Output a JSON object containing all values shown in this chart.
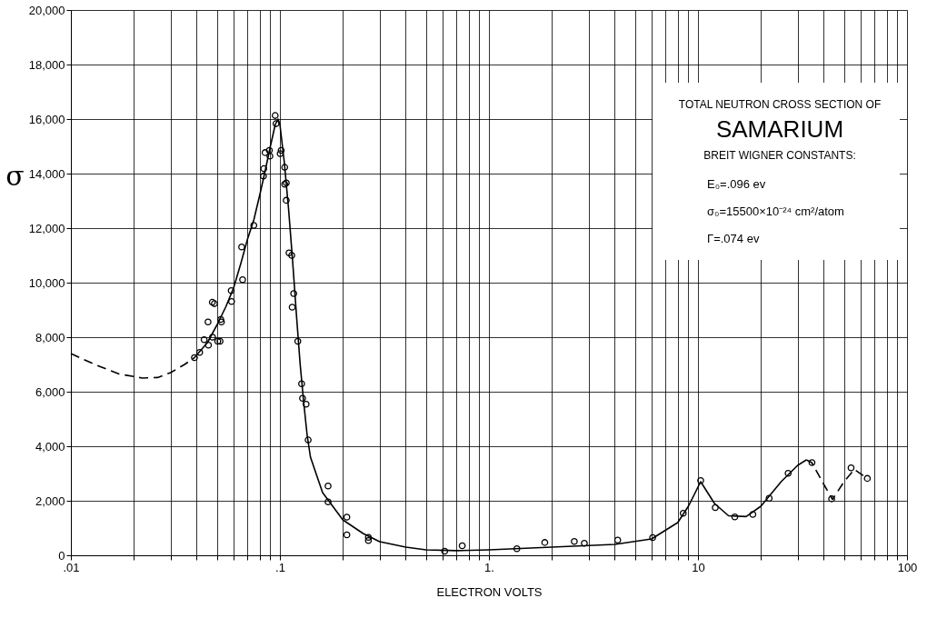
{
  "chart_data": {
    "type": "scatter",
    "xlabel": "ELECTRON VOLTS",
    "ylabel": "σ",
    "log": "x",
    "grid": true,
    "xlim": [
      0.01,
      100
    ],
    "ylim": [
      0,
      20000
    ],
    "xticks": [
      {
        "value": 0.01,
        "label": ".01"
      },
      {
        "value": 0.02,
        "label": null
      },
      {
        "value": 0.03,
        "label": null
      },
      {
        "value": 0.04,
        "label": null
      },
      {
        "value": 0.05,
        "label": null
      },
      {
        "value": 0.06,
        "label": null
      },
      {
        "value": 0.07,
        "label": null
      },
      {
        "value": 0.08,
        "label": null
      },
      {
        "value": 0.09,
        "label": null
      },
      {
        "value": 0.1,
        "label": ".1"
      },
      {
        "value": 0.2,
        "label": null
      },
      {
        "value": 0.3,
        "label": null
      },
      {
        "value": 0.4,
        "label": null
      },
      {
        "value": 0.5,
        "label": null
      },
      {
        "value": 0.6,
        "label": null
      },
      {
        "value": 0.7,
        "label": null
      },
      {
        "value": 0.8,
        "label": null
      },
      {
        "value": 0.9,
        "label": null
      },
      {
        "value": 1,
        "label": "1."
      },
      {
        "value": 2,
        "label": null
      },
      {
        "value": 3,
        "label": null
      },
      {
        "value": 4,
        "label": null
      },
      {
        "value": 5,
        "label": null
      },
      {
        "value": 6,
        "label": null
      },
      {
        "value": 7,
        "label": null
      },
      {
        "value": 8,
        "label": null
      },
      {
        "value": 9,
        "label": null
      },
      10,
      {
        "value": 20,
        "label": null
      },
      {
        "value": 30,
        "label": null
      },
      {
        "value": 40,
        "label": null
      },
      {
        "value": 50,
        "label": null
      },
      {
        "value": 60,
        "label": null
      },
      {
        "value": 70,
        "label": null
      },
      {
        "value": 80,
        "label": null
      },
      {
        "value": 90,
        "label": null
      },
      100
    ],
    "yticks": [
      0,
      {
        "value": 2000,
        "label": "2,000"
      },
      {
        "value": 4000,
        "label": "4,000"
      },
      {
        "value": 6000,
        "label": "6,000"
      },
      {
        "value": 8000,
        "label": "8,000"
      },
      {
        "value": 10000,
        "label": "10,000"
      },
      {
        "value": 12000,
        "label": "12,000"
      },
      {
        "value": 14000,
        "label": "14,000"
      },
      {
        "value": 16000,
        "label": "16,000"
      },
      {
        "value": 18000,
        "label": "18,000"
      },
      {
        "value": 20000,
        "label": "20,000"
      }
    ],
    "annotations": [
      "TOTAL NEUTRON CROSS SECTION OF",
      "SAMARIUM",
      "BREIT WIGNER CONSTANTS:",
      "E₀=.096 ev",
      "σ₀=15500×10⁻²⁴ cm²/atom",
      "Γ=.074 ev"
    ],
    "series": [
      {
        "color": "#000000",
        "marker": "circle",
        "x": [
          0.039,
          0.0413,
          0.0434,
          0.0453,
          0.0455,
          0.0475,
          0.0476,
          0.0486,
          0.0504,
          0.0517,
          0.0521,
          0.0525,
          0.0585,
          0.0587,
          0.0656,
          0.0663,
          0.075,
          0.0834,
          0.0837,
          0.0849,
          0.089,
          0.0895,
          0.0949,
          0.0958,
          0.1003,
          0.1014,
          0.1054,
          0.1054,
          0.1073,
          0.1072,
          0.1106,
          0.1139,
          0.1145,
          0.1164,
          0.1218,
          0.127,
          0.1283,
          0.1334,
          0.1365,
          0.17,
          0.17,
          0.209,
          0.209,
          0.265,
          0.265,
          0.614,
          0.745,
          1.36,
          1.85,
          2.56,
          2.86,
          4.13,
          6.07,
          8.5,
          10.3,
          12.1,
          15.0,
          18.3,
          21.9,
          27.0,
          35.1,
          43.6,
          54.0,
          64.6
        ],
        "values": [
          7250,
          7440,
          7910,
          8560,
          7710,
          9280,
          8000,
          9230,
          7850,
          7850,
          8650,
          8560,
          9710,
          9310,
          11310,
          10110,
          12100,
          13910,
          14180,
          14770,
          14850,
          14640,
          16130,
          15830,
          14730,
          14850,
          14230,
          13610,
          13660,
          13020,
          11090,
          11000,
          9100,
          9600,
          7850,
          6290,
          5760,
          5540,
          4230,
          2540,
          1960,
          1400,
          750,
          660,
          540,
          150,
          350,
          240,
          470,
          510,
          440,
          560,
          650,
          1540,
          2740,
          1750,
          1410,
          1500,
          2090,
          3010,
          3400,
          2070,
          3210,
          2820
        ]
      },
      {
        "type": "line",
        "color": "#000000",
        "marker": "none",
        "line_style": "dashed",
        "x": [
          0.01,
          0.013,
          0.017,
          0.022,
          0.026,
          0.03,
          0.035,
          0.039
        ],
        "values": [
          7400,
          7000,
          6650,
          6500,
          6520,
          6700,
          7000,
          7250
        ]
      },
      {
        "type": "line",
        "color": "#000000",
        "marker": "none",
        "line_style": "solid",
        "x": [
          0.039,
          0.045,
          0.05,
          0.055,
          0.06,
          0.065,
          0.07,
          0.075,
          0.08,
          0.085,
          0.09,
          0.095,
          0.098,
          0.1,
          0.105,
          0.11,
          0.115,
          0.12,
          0.125,
          0.13,
          0.135,
          0.14,
          0.16,
          0.2,
          0.25,
          0.3,
          0.4,
          0.5,
          0.7,
          1,
          2,
          4,
          6,
          8,
          9,
          10.3,
          12,
          14,
          17,
          20,
          25,
          30,
          33
        ],
        "values": [
          7250,
          7800,
          8450,
          9100,
          9800,
          10700,
          11600,
          12300,
          13200,
          14100,
          15000,
          15800,
          16000,
          15800,
          14400,
          12700,
          10800,
          8800,
          7000,
          5600,
          4400,
          3600,
          2300,
          1300,
          800,
          500,
          300,
          200,
          170,
          200,
          300,
          400,
          600,
          1200,
          1800,
          2700,
          1900,
          1450,
          1420,
          1800,
          2700,
          3300,
          3500
        ]
      },
      {
        "type": "line",
        "color": "#000000",
        "marker": "none",
        "line_style": "dashed",
        "x": [
          33,
          35,
          40,
          44,
          50,
          56,
          65
        ],
        "values": [
          3500,
          3400,
          2600,
          2050,
          2700,
          3150,
          2800
        ]
      }
    ]
  }
}
